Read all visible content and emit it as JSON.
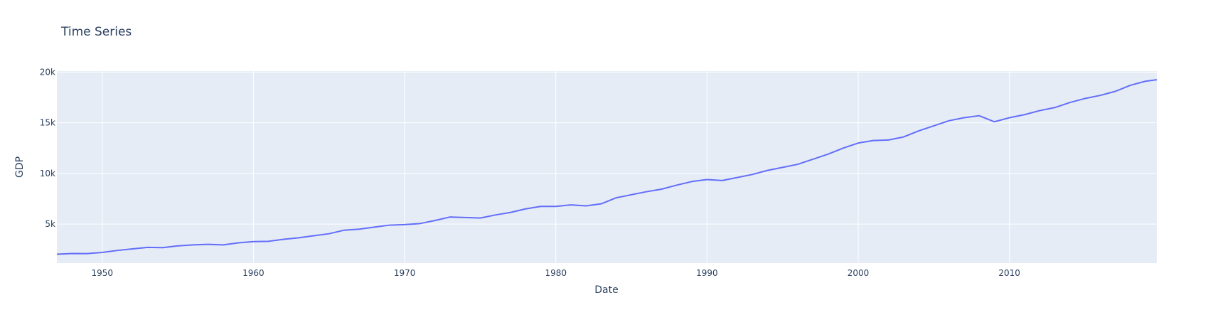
{
  "chart_data": {
    "type": "line",
    "title": "Time Series",
    "x_label": "Date",
    "y_label": "GDP",
    "x": [
      1947,
      1948,
      1949,
      1950,
      1951,
      1952,
      1953,
      1954,
      1955,
      1956,
      1957,
      1958,
      1959,
      1960,
      1961,
      1962,
      1963,
      1964,
      1965,
      1966,
      1967,
      1968,
      1969,
      1970,
      1971,
      1972,
      1973,
      1974,
      1975,
      1976,
      1977,
      1978,
      1979,
      1980,
      1981,
      1982,
      1983,
      1984,
      1985,
      1986,
      1987,
      1988,
      1989,
      1990,
      1991,
      1992,
      1993,
      1994,
      1995,
      1996,
      1997,
      1998,
      1999,
      2000,
      2001,
      2002,
      2003,
      2004,
      2005,
      2006,
      2007,
      2008,
      2009,
      2010,
      2011,
      2012,
      2013,
      2014,
      2015,
      2016,
      2017,
      2018,
      2019,
      2019.75
    ],
    "series": [
      {
        "name": "GDP",
        "color": "#636efa",
        "values": [
          2030,
          2100,
          2090,
          2200,
          2400,
          2550,
          2700,
          2680,
          2850,
          2950,
          3000,
          2950,
          3150,
          3270,
          3300,
          3500,
          3650,
          3850,
          4050,
          4400,
          4500,
          4700,
          4900,
          4950,
          5050,
          5350,
          5700,
          5650,
          5600,
          5900,
          6150,
          6500,
          6750,
          6750,
          6900,
          6800,
          7000,
          7600,
          7900,
          8200,
          8450,
          8850,
          9200,
          9400,
          9300,
          9600,
          9900,
          10300,
          10600,
          10900,
          11400,
          11900,
          12500,
          13000,
          13250,
          13300,
          13600,
          14200,
          14700,
          15200,
          15500,
          15700,
          15100,
          15500,
          15800,
          16200,
          16500,
          17000,
          17400,
          17700,
          18100,
          18700,
          19100,
          19250
        ]
      }
    ],
    "xlim": [
      1947,
      2019.75
    ],
    "ylim": [
      1150,
      20100
    ],
    "xticks": [
      1950,
      1960,
      1970,
      1980,
      1990,
      2000,
      2010
    ],
    "yticks": [
      {
        "value": 5000,
        "label": "5k"
      },
      {
        "value": 10000,
        "label": "10k"
      },
      {
        "value": 15000,
        "label": "15k"
      },
      {
        "value": 20000,
        "label": "20k"
      }
    ],
    "grid": true
  }
}
